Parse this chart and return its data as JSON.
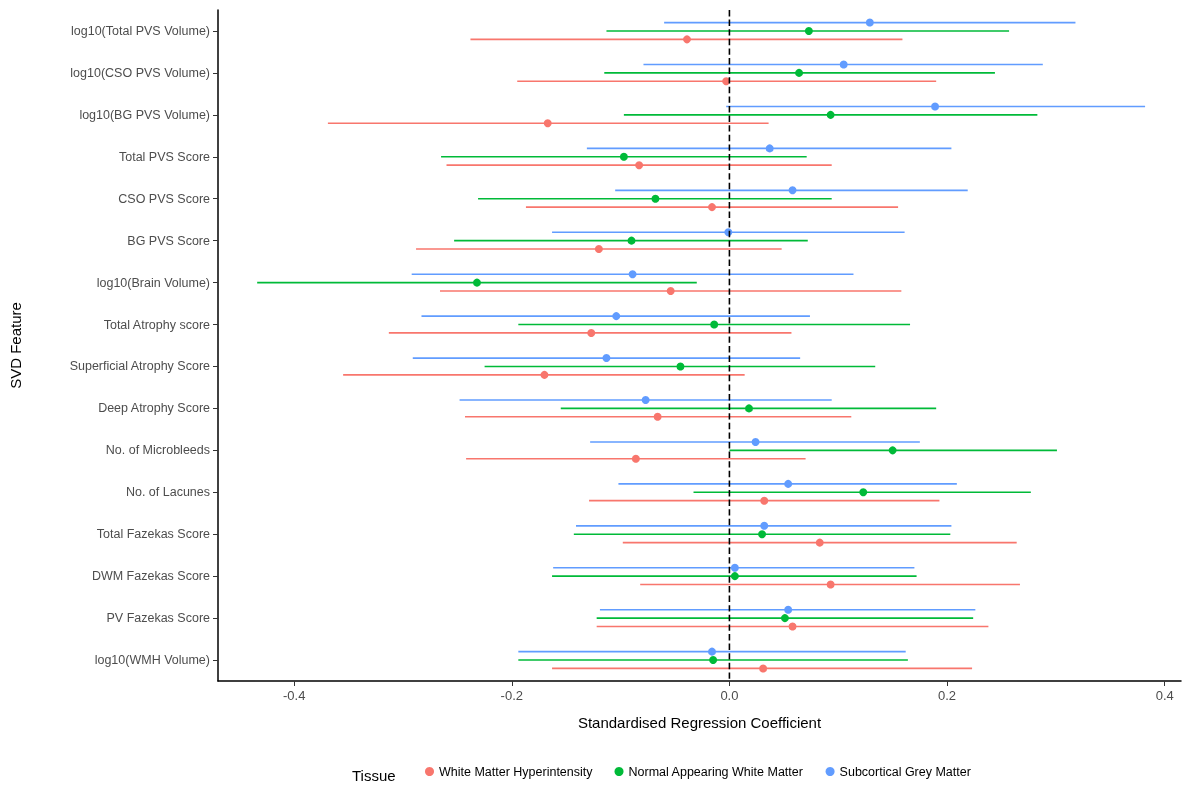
{
  "chart_data": {
    "type": "scatter",
    "xlabel": "Standardised Regression Coefficient",
    "ylabel": "SVD Feature",
    "legend_title": "Tissue",
    "legend": "bottom",
    "grid": false,
    "marker": "circle",
    "orientation": "horizontal",
    "categories": [
      "log10(Total PVS Volume)",
      "log10(CSO PVS Volume)",
      "log10(BG PVS Volume)",
      "Total PVS Score",
      "CSO PVS Score",
      "BG PVS Score",
      "log10(Brain Volume)",
      "Total Atrophy score",
      "Superficial Atrophy Score",
      "Deep Atrophy Score",
      "No. of Microbleeds",
      "No. of Lacunes",
      "Total Fazekas Score",
      "DWM Fazekas Score",
      "PV Fazekas Score",
      "log10(WMH Volume)"
    ],
    "xlim": [
      -0.47,
      0.415
    ],
    "xticks": [
      -0.4,
      -0.2,
      {
        "value": 0,
        "label": "0.0"
      },
      0.2,
      0.4
    ],
    "ref_lines": [
      {
        "axis": "x",
        "value": 0,
        "color": "#000000",
        "line_style": "dashed"
      }
    ],
    "series": [
      {
        "name": "White Matter Hyperintensity",
        "color": "#f8766d",
        "values": [
          -0.039,
          -0.003,
          -0.167,
          -0.083,
          -0.016,
          -0.12,
          -0.054,
          -0.127,
          -0.17,
          -0.066,
          -0.086,
          0.032,
          0.083,
          0.093,
          0.058,
          0.031
        ],
        "errors": [
          [
            -0.238,
            0.159
          ],
          [
            -0.195,
            0.19
          ],
          [
            -0.369,
            0.036
          ],
          [
            -0.26,
            0.094
          ],
          [
            -0.187,
            0.155
          ],
          [
            -0.288,
            0.048
          ],
          [
            -0.266,
            0.158
          ],
          [
            -0.313,
            0.057
          ],
          [
            -0.355,
            0.014
          ],
          [
            -0.243,
            0.112
          ],
          [
            -0.242,
            0.07
          ],
          [
            -0.129,
            0.193
          ],
          [
            -0.098,
            0.264
          ],
          [
            -0.082,
            0.267
          ],
          [
            -0.122,
            0.238
          ],
          [
            -0.163,
            0.223
          ]
        ]
      },
      {
        "name": "Normal Appearing White Matter",
        "color": "#00ba38",
        "values": [
          0.073,
          0.064,
          0.093,
          -0.097,
          -0.068,
          -0.09,
          -0.232,
          -0.014,
          -0.045,
          0.018,
          0.15,
          0.123,
          0.03,
          0.005,
          0.051,
          -0.015
        ],
        "errors": [
          [
            -0.113,
            0.257
          ],
          [
            -0.115,
            0.244
          ],
          [
            -0.097,
            0.283
          ],
          [
            -0.265,
            0.071
          ],
          [
            -0.231,
            0.094
          ],
          [
            -0.253,
            0.072
          ],
          [
            -0.434,
            -0.03
          ],
          [
            -0.194,
            0.166
          ],
          [
            -0.225,
            0.134
          ],
          [
            -0.155,
            0.19
          ],
          [
            0.0,
            0.301
          ],
          [
            -0.033,
            0.277
          ],
          [
            -0.143,
            0.203
          ],
          [
            -0.163,
            0.172
          ],
          [
            -0.122,
            0.224
          ],
          [
            -0.194,
            0.164
          ]
        ]
      },
      {
        "name": "Subcortical Grey Matter",
        "color": "#619cff",
        "values": [
          0.129,
          0.105,
          0.189,
          0.037,
          0.058,
          -0.001,
          -0.089,
          -0.104,
          -0.113,
          -0.077,
          0.024,
          0.054,
          0.032,
          0.005,
          0.054,
          -0.016
        ],
        "errors": [
          [
            -0.06,
            0.318
          ],
          [
            -0.079,
            0.288
          ],
          [
            -0.003,
            0.382
          ],
          [
            -0.131,
            0.204
          ],
          [
            -0.105,
            0.219
          ],
          [
            -0.163,
            0.161
          ],
          [
            -0.292,
            0.114
          ],
          [
            -0.283,
            0.074
          ],
          [
            -0.291,
            0.065
          ],
          [
            -0.248,
            0.094
          ],
          [
            -0.128,
            0.175
          ],
          [
            -0.102,
            0.209
          ],
          [
            -0.141,
            0.204
          ],
          [
            -0.162,
            0.17
          ],
          [
            -0.119,
            0.226
          ],
          [
            -0.194,
            0.162
          ]
        ]
      }
    ]
  }
}
